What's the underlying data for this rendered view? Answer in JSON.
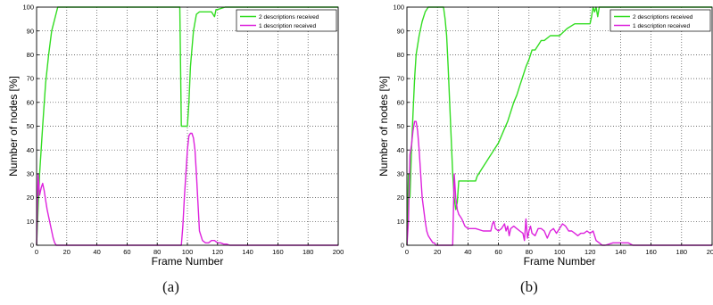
{
  "figure": {
    "captions": [
      "(a)",
      "(b)"
    ]
  },
  "colors": {
    "two_desc": "#33dd22",
    "one_desc": "#dd22dd",
    "grid": "#444444",
    "axis": "#000000"
  },
  "chart_data": [
    {
      "type": "line",
      "panel": "(a)",
      "xlabel": "Frame Number",
      "ylabel": "Number of nodes [%]",
      "xlim": [
        0,
        200
      ],
      "ylim": [
        0,
        100
      ],
      "xticks": [
        0,
        20,
        40,
        60,
        80,
        100,
        120,
        140,
        160,
        180,
        200
      ],
      "yticks": [
        0,
        10,
        20,
        30,
        40,
        50,
        60,
        70,
        80,
        90,
        100
      ],
      "grid": true,
      "legend": "top-right",
      "series": [
        {
          "name": "2 descriptions received",
          "color": "#33dd22",
          "x": [
            0,
            2,
            4,
            6,
            8,
            10,
            12,
            14,
            16,
            95,
            96,
            100,
            101,
            102,
            104,
            106,
            108,
            110,
            112,
            116,
            118,
            119,
            120,
            125,
            200
          ],
          "y": [
            0,
            30,
            50,
            68,
            80,
            90,
            95,
            100,
            100,
            100,
            50,
            50,
            60,
            75,
            90,
            97,
            98,
            98,
            98,
            98,
            96,
            99,
            99,
            100,
            100
          ]
        },
        {
          "name": "1 description received",
          "color": "#dd22dd",
          "x": [
            0,
            1,
            2,
            3,
            4,
            5,
            6,
            7,
            8,
            9,
            10,
            11,
            12,
            13,
            14,
            15,
            96,
            97,
            98,
            99,
            100,
            101,
            102,
            103,
            104,
            105,
            106,
            107,
            108,
            110,
            112,
            114,
            116,
            118,
            120,
            122,
            124,
            126,
            128,
            130,
            200
          ],
          "y": [
            0,
            30,
            21,
            24,
            26,
            23,
            19,
            15,
            12,
            9,
            6,
            3,
            1,
            0,
            0,
            0,
            0,
            8,
            20,
            30,
            40,
            46,
            47,
            47,
            45,
            40,
            30,
            18,
            6,
            2,
            1,
            1,
            2,
            2,
            1,
            1,
            0.5,
            0.5,
            0,
            0,
            0
          ]
        }
      ]
    },
    {
      "type": "line",
      "panel": "(b)",
      "xlabel": "Frame Number",
      "ylabel": "Number of nodes [%]",
      "xlim": [
        0,
        200
      ],
      "ylim": [
        0,
        100
      ],
      "xticks": [
        0,
        20,
        40,
        60,
        80,
        100,
        120,
        140,
        160,
        180,
        200
      ],
      "yticks": [
        0,
        10,
        20,
        30,
        40,
        50,
        60,
        70,
        80,
        90,
        100
      ],
      "grid": true,
      "legend": "top-right",
      "series": [
        {
          "name": "2 descriptions received",
          "color": "#33dd22",
          "x": [
            0,
            1,
            2,
            3,
            4,
            5,
            6,
            8,
            10,
            12,
            14,
            16,
            18,
            20,
            22,
            24,
            25,
            26,
            27,
            28,
            29,
            30,
            31,
            32,
            33,
            34,
            36,
            40,
            45,
            46,
            48,
            50,
            52,
            54,
            56,
            58,
            60,
            62,
            64,
            66,
            68,
            70,
            72,
            74,
            76,
            78,
            80,
            82,
            84,
            86,
            88,
            90,
            94,
            96,
            100,
            105,
            110,
            115,
            120,
            121,
            122,
            123,
            124,
            125,
            126,
            130,
            140,
            200
          ],
          "y": [
            0,
            30,
            20,
            40,
            55,
            70,
            80,
            88,
            94,
            98,
            100,
            100,
            100,
            100,
            100,
            100,
            95,
            88,
            75,
            60,
            45,
            30,
            20,
            15,
            18,
            27,
            27,
            27,
            27,
            29,
            31,
            33,
            35,
            37,
            39,
            41,
            43,
            46,
            49,
            52,
            56,
            60,
            63,
            67,
            71,
            75,
            78,
            82,
            82,
            84,
            86,
            86,
            88,
            88,
            88,
            91,
            93,
            93,
            93,
            96,
            100,
            98,
            100,
            96,
            100,
            100,
            100,
            100
          ]
        },
        {
          "name": "1 description received",
          "color": "#dd22dd",
          "x": [
            0,
            1,
            2,
            3,
            4,
            5,
            6,
            7,
            8,
            9,
            10,
            11,
            12,
            13,
            14,
            15,
            16,
            17,
            18,
            19,
            20,
            30,
            31,
            32,
            33,
            34,
            35,
            36,
            38,
            40,
            45,
            50,
            52,
            55,
            56,
            57,
            58,
            60,
            62,
            64,
            65,
            66,
            67,
            68,
            70,
            72,
            74,
            76,
            77,
            78,
            79,
            80,
            81,
            82,
            84,
            86,
            88,
            90,
            92,
            94,
            96,
            98,
            100,
            102,
            104,
            106,
            108,
            110,
            112,
            114,
            116,
            118,
            120,
            122,
            124,
            126,
            128,
            130,
            135,
            140,
            145,
            148,
            150,
            200
          ],
          "y": [
            0,
            10,
            38,
            42,
            48,
            52,
            52,
            48,
            40,
            30,
            20,
            15,
            10,
            6,
            4,
            3,
            2,
            1,
            1,
            0,
            0,
            0,
            30,
            20,
            15,
            13,
            12,
            11,
            8,
            7,
            7,
            6,
            6,
            6,
            9,
            10,
            7,
            6,
            7,
            9,
            6,
            8,
            4,
            7,
            8,
            7,
            6,
            5,
            2,
            11,
            3,
            6,
            8,
            5,
            4,
            7,
            7,
            6,
            3,
            6,
            7,
            5,
            7,
            9,
            8,
            6,
            6,
            5,
            4,
            5,
            5,
            6,
            5,
            6,
            2,
            1,
            0,
            0,
            1,
            1,
            1,
            0,
            0,
            0
          ]
        }
      ]
    }
  ]
}
